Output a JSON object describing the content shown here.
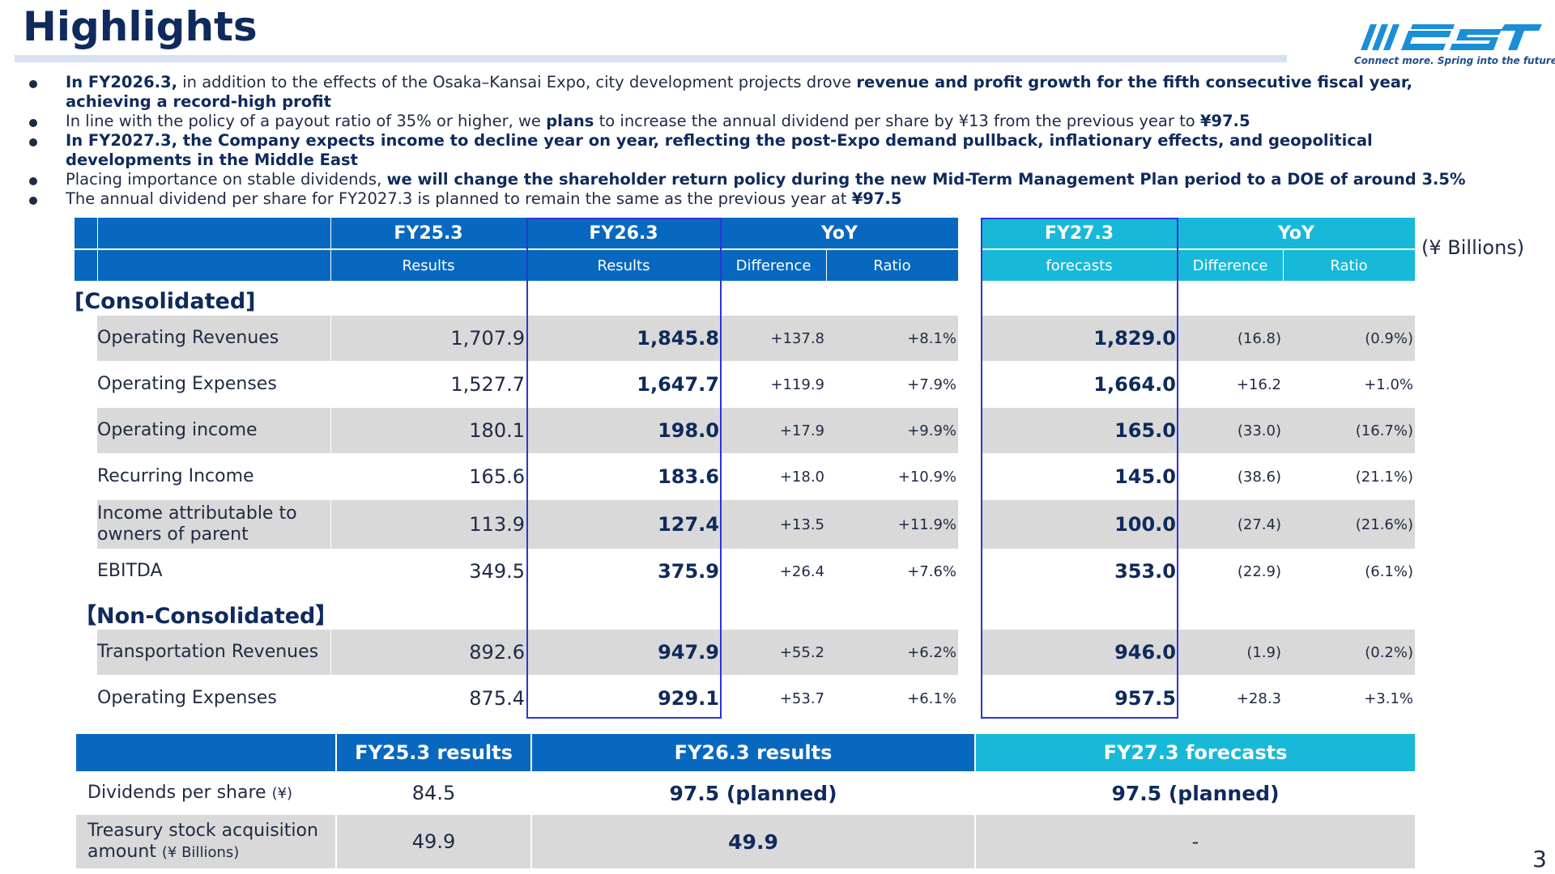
{
  "title": "Highlights",
  "logo": {
    "tagline": "Connect more. Spring into the future.",
    "accent": "#1a8fd8"
  },
  "bullets": [
    [
      {
        "t": "In FY2026.3,",
        "b": true
      },
      {
        "t": " in addition to the effects of the Osaka–Kansai Expo, city development projects drove ",
        "b": false
      },
      {
        "t": "revenue and profit growth for the fifth consecutive fiscal year, achieving a record-high profit",
        "b": true
      }
    ],
    [
      {
        "t": "In line with the policy of a payout ratio of 35% or higher, we ",
        "b": false
      },
      {
        "t": "plans",
        "b": true
      },
      {
        "t": " to increase the annual dividend per share by ¥13 from the previous year to ",
        "b": false
      },
      {
        "t": "¥97.5",
        "b": true
      }
    ],
    [
      {
        "t": "In FY2027.3, the Company expects income to decline year on year, reflecting the post-Expo demand pullback, inflationary effects, and geopolitical developments in the Middle East",
        "b": true
      }
    ],
    [
      {
        "t": "Placing importance on stable dividends, ",
        "b": false
      },
      {
        "t": "we will change the shareholder return policy during the new Mid-Term Management Plan period to a DOE of around 3.5%",
        "b": true
      }
    ],
    [
      {
        "t": "The annual dividend per share for FY2027.3 is planned to remain the same as the previous year at ",
        "b": false
      },
      {
        "t": "¥97.5",
        "b": true
      }
    ]
  ],
  "table": {
    "units": "(¥ Billions)",
    "headers": {
      "fy25": "FY25.3",
      "fy26": "FY26.3",
      "yoy1": "YoY",
      "fy27": "FY27.3",
      "yoy2": "YoY",
      "results": "Results",
      "difference": "Difference",
      "ratio": "Ratio",
      "forecasts": "forecasts"
    },
    "section_consolidated": "[Consolidated]",
    "section_non_consolidated": "【Non-Consolidated】",
    "rows": [
      {
        "label": "Operating Revenues",
        "fy25": "1,707.9",
        "fy26": "1,845.8",
        "diff1": "+137.8",
        "ratio1": "+8.1%",
        "fy27": "1,829.0",
        "diff2": "(16.8)",
        "ratio2": "(0.9%)"
      },
      {
        "label": "Operating Expenses",
        "fy25": "1,527.7",
        "fy26": "1,647.7",
        "diff1": "+119.9",
        "ratio1": "+7.9%",
        "fy27": "1,664.0",
        "diff2": "+16.2",
        "ratio2": "+1.0%"
      },
      {
        "label": "Operating income",
        "fy25": "180.1",
        "fy26": "198.0",
        "diff1": "+17.9",
        "ratio1": "+9.9%",
        "fy27": "165.0",
        "diff2": "(33.0)",
        "ratio2": "(16.7%)"
      },
      {
        "label": "Recurring Income",
        "fy25": "165.6",
        "fy26": "183.6",
        "diff1": "+18.0",
        "ratio1": "+10.9%",
        "fy27": "145.0",
        "diff2": "(38.6)",
        "ratio2": "(21.1%)"
      },
      {
        "label": "Income attributable to owners of parent",
        "fy25": "113.9",
        "fy26": "127.4",
        "diff1": "+13.5",
        "ratio1": "+11.9%",
        "fy27": "100.0",
        "diff2": "(27.4)",
        "ratio2": "(21.6%)"
      },
      {
        "label": "EBITDA",
        "fy25": "349.5",
        "fy26": "375.9",
        "diff1": "+26.4",
        "ratio1": "+7.6%",
        "fy27": "353.0",
        "diff2": "(22.9)",
        "ratio2": "(6.1%)"
      },
      {
        "label": "Transportation Revenues",
        "fy25": "892.6",
        "fy26": "947.9",
        "diff1": "+55.2",
        "ratio1": "+6.2%",
        "fy27": "946.0",
        "diff2": "(1.9)",
        "ratio2": "(0.2%)"
      },
      {
        "label": "Operating Expenses",
        "fy25": "875.4",
        "fy26": "929.1",
        "diff1": "+53.7",
        "ratio1": "+6.1%",
        "fy27": "957.5",
        "diff2": "+28.3",
        "ratio2": "+3.1%"
      }
    ]
  },
  "shareholder": {
    "headers": {
      "fy25": "FY25.3 results",
      "fy26": "FY26.3 results",
      "fy27": "FY27.3 forecasts"
    },
    "rows": [
      {
        "label": "Dividends per share",
        "unit": "(¥)",
        "fy25": "84.5",
        "fy26": "97.5 (planned)",
        "fy27": "97.5 (planned)"
      },
      {
        "label": "Treasury stock acquisition amount",
        "unit": "(¥ Billions)",
        "fy25": "49.9",
        "fy26": "49.9",
        "fy27": "-"
      }
    ]
  },
  "page_number": "3",
  "colors": {
    "header_dark": "#0868c0",
    "header_cyan": "#18b8d8",
    "band_gray": "#d9d9d9",
    "highlight_outline": "#2a35d8"
  }
}
